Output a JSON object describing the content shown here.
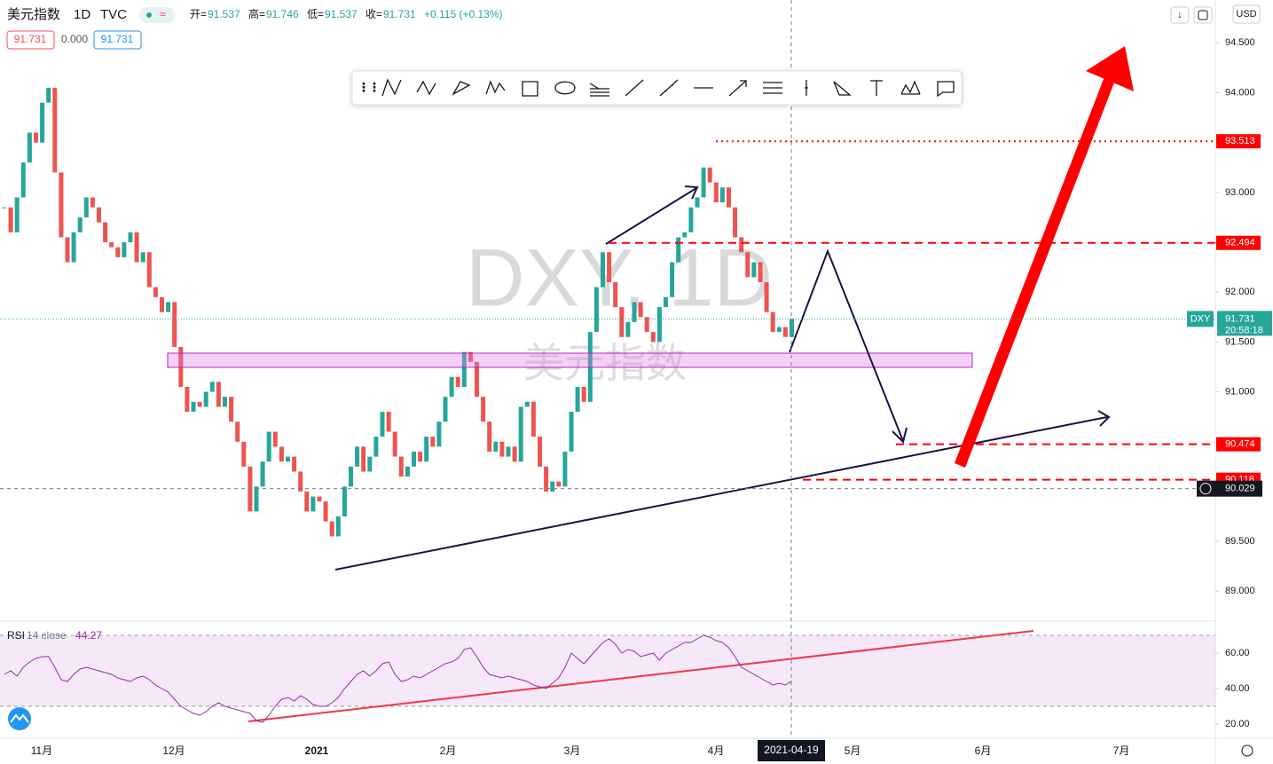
{
  "header": {
    "symbol": "美元指数",
    "interval": "1D",
    "exchange": "TVC",
    "ohlc": [
      {
        "label": "开=",
        "value": 91.537
      },
      {
        "label": "高=",
        "value": 91.746
      },
      {
        "label": "低=",
        "value": 91.537
      },
      {
        "label": "收=",
        "value": 91.731
      }
    ],
    "change": "+0.115 (+0.13%)",
    "badges": [
      "91.731",
      "0.000",
      "91.731"
    ],
    "currency": "USD"
  },
  "watermark": {
    "ticker": "DXY, 1D",
    "name": "美元指数"
  },
  "chart_data": {
    "type": "candlestick",
    "close": [
      92.85,
      92.6,
      92.95,
      93.3,
      93.6,
      93.5,
      93.9,
      94.05,
      93.2,
      92.55,
      92.3,
      92.6,
      92.75,
      92.95,
      92.85,
      92.7,
      92.5,
      92.45,
      92.35,
      92.5,
      92.6,
      92.3,
      92.4,
      92.05,
      91.95,
      91.8,
      91.9,
      91.45,
      91.05,
      90.8,
      90.9,
      90.85,
      91.0,
      91.1,
      90.85,
      90.95,
      90.7,
      90.5,
      90.25,
      89.8,
      90.05,
      90.3,
      90.6,
      90.45,
      90.3,
      90.35,
      90.2,
      90.0,
      89.8,
      89.95,
      89.9,
      89.7,
      89.55,
      89.75,
      90.05,
      90.25,
      90.45,
      90.2,
      90.35,
      90.55,
      90.8,
      90.6,
      90.35,
      90.15,
      90.25,
      90.4,
      90.3,
      90.55,
      90.45,
      90.7,
      90.95,
      91.15,
      91.05,
      91.4,
      91.3,
      90.95,
      90.7,
      90.4,
      90.5,
      90.35,
      90.45,
      90.3,
      90.85,
      90.9,
      90.55,
      90.25,
      90.0,
      90.1,
      90.05,
      90.4,
      90.8,
      91.05,
      90.9,
      91.6,
      92.05,
      92.4,
      92.1,
      91.85,
      91.55,
      91.7,
      91.9,
      91.75,
      91.6,
      91.5,
      91.85,
      91.95,
      92.3,
      92.55,
      92.6,
      92.85,
      92.95,
      93.25,
      93.1,
      92.9,
      93.05,
      92.85,
      92.55,
      92.4,
      92.15,
      92.3,
      92.1,
      91.8,
      91.6,
      91.65,
      91.55,
      91.731
    ],
    "up_color": "#26a69a",
    "down_color": "#ef5350",
    "ylim": [
      88.7,
      94.93
    ],
    "yticks": [
      {
        "value": 89.0,
        "label": "89.000"
      },
      {
        "value": 89.5,
        "label": "89.500"
      },
      {
        "value": 90.0,
        "label": "90.000"
      },
      {
        "value": 90.5,
        "label": "90.500"
      },
      {
        "value": 91.0,
        "label": "91.000"
      },
      {
        "value": 91.5,
        "label": "91.500"
      },
      {
        "value": 92.0,
        "label": "92.000"
      },
      {
        "value": 92.5,
        "label": "92.500"
      },
      {
        "value": 93.0,
        "label": "93.000"
      },
      {
        "value": 93.5,
        "label": "93.500"
      },
      {
        "value": 94.0,
        "label": "94.000"
      },
      {
        "value": 94.5,
        "label": "94.500"
      }
    ],
    "levels": [
      {
        "value": 93.513,
        "style": "dotted"
      },
      {
        "value": 92.494,
        "style": "dashed"
      },
      {
        "value": 90.474,
        "style": "dashed"
      },
      {
        "value": 90.118,
        "style": "dashed"
      }
    ],
    "crosshair": {
      "value": 90.029,
      "date": "2021-04-19"
    },
    "last": {
      "ticker": "DXY",
      "value": 91.731,
      "countdown": "20:58:18"
    },
    "x_labels": [
      "11月",
      "12月",
      "2021",
      "2月",
      "3月",
      "4月",
      "5月",
      "6月",
      "7月"
    ],
    "rsi": {
      "label": "RSI",
      "params": "14 close",
      "value": 44.27,
      "color": "#9c27b0",
      "values": [
        48,
        50,
        47,
        52,
        55,
        57,
        58,
        58,
        52,
        45,
        44,
        48,
        51,
        52,
        51,
        50,
        49,
        48,
        46,
        45,
        44,
        46,
        47,
        45,
        42,
        40,
        38,
        34,
        30,
        28,
        26,
        25,
        27,
        30,
        32,
        30,
        29,
        28,
        27,
        26,
        22,
        21,
        25,
        30,
        34,
        35,
        33,
        36,
        34,
        31,
        30,
        30,
        32,
        35,
        40,
        44,
        48,
        50,
        47,
        50,
        54,
        55,
        48,
        44,
        45,
        47,
        46,
        48,
        50,
        52,
        54,
        55,
        57,
        62,
        63,
        58,
        52,
        48,
        47,
        46,
        47,
        46,
        45,
        44,
        42,
        41,
        40,
        43,
        46,
        52,
        60,
        57,
        54,
        58,
        62,
        66,
        68,
        65,
        60,
        62,
        61,
        58,
        59,
        60,
        56,
        60,
        62,
        64,
        66,
        66,
        68,
        70,
        69,
        67,
        66,
        63,
        58,
        52,
        50,
        48,
        46,
        44,
        42,
        43,
        42,
        44.27
      ],
      "ylim": [
        12,
        78
      ],
      "band": [
        30,
        70
      ],
      "yticks": [
        {
          "value": 20,
          "label": "20.00"
        },
        {
          "value": 40,
          "label": "40.00"
        },
        {
          "value": 60,
          "label": "60.00"
        }
      ]
    }
  }
}
